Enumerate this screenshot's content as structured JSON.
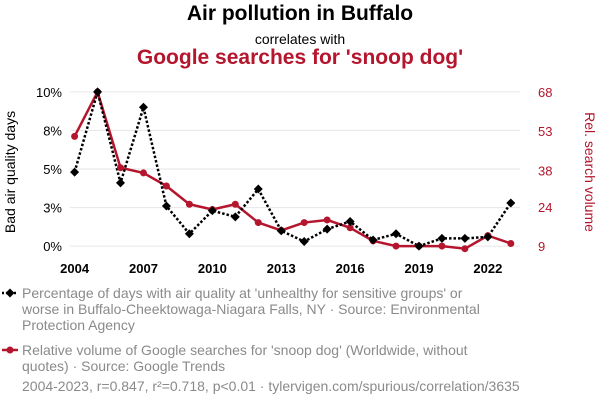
{
  "header": {
    "title": "Air pollution in Buffalo",
    "connector": "correlates with",
    "subtitle": "Google searches for 'snoop dog'"
  },
  "colors": {
    "series1": "#000000",
    "series2": "#b5162d",
    "grid": "#e6e6e6",
    "legend_text": "#8a8a8a"
  },
  "chart_data": {
    "type": "line",
    "x": [
      2004,
      2005,
      2006,
      2007,
      2008,
      2009,
      2010,
      2011,
      2012,
      2013,
      2014,
      2015,
      2016,
      2017,
      2018,
      2019,
      2020,
      2021,
      2022,
      2023
    ],
    "x_ticks": [
      "2004",
      "2007",
      "2010",
      "2013",
      "2016",
      "2019",
      "2022"
    ],
    "xlim": [
      2003.8,
      2023.4
    ],
    "left_axis": {
      "label": "Bad air quality days",
      "ticks": [
        "0%",
        "3%",
        "5%",
        "8%",
        "10%"
      ],
      "tick_values": [
        0,
        2.5,
        5,
        7.5,
        10
      ],
      "ylim": [
        -0.25,
        10.25
      ]
    },
    "right_axis": {
      "label": "Rel. search volume",
      "ticks": [
        "9",
        "24",
        "38",
        "53",
        "68"
      ],
      "tick_values": [
        9,
        24,
        38,
        53,
        68
      ],
      "ylim": [
        7.5,
        69.5
      ]
    },
    "series": [
      {
        "name": "Bad air quality days",
        "axis": "left",
        "style": "dotted",
        "marker": "diamond",
        "values": [
          4.8,
          10.0,
          4.1,
          9.0,
          2.6,
          0.8,
          2.3,
          1.9,
          3.7,
          1.0,
          0.3,
          1.1,
          1.6,
          0.4,
          0.8,
          0.0,
          0.5,
          0.5,
          0.6,
          2.8
        ]
      },
      {
        "name": "Google searches for 'snoop dog'",
        "axis": "right",
        "style": "solid",
        "marker": "circle",
        "values": [
          51,
          68,
          39,
          37,
          32,
          25,
          23,
          25,
          18,
          15,
          18,
          19,
          16,
          11,
          9,
          9,
          9,
          8,
          13,
          10
        ]
      }
    ],
    "legend": [
      "Percentage of days with air quality at 'unhealthy for sensitive groups' or worse in Buffalo-Cheektowaga-Niagara Falls, NY · Source: Environmental Protection Agency",
      "Relative volume of Google searches for 'snoop dog' (Worldwide, without quotes) · Source: Google Trends"
    ],
    "footer": "2004-2023, r=0.847, r²=0.718, p<0.01 · tylervigen.com/spurious/correlation/3635"
  }
}
